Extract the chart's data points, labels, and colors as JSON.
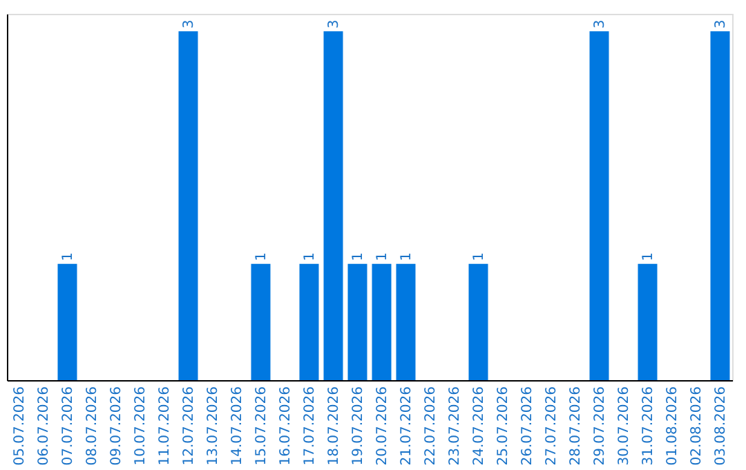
{
  "chart_data": {
    "type": "bar",
    "categories": [
      "05.07.2026",
      "06.07.2026",
      "07.07.2026",
      "08.07.2026",
      "09.07.2026",
      "10.07.2026",
      "11.07.2026",
      "12.07.2026",
      "13.07.2026",
      "14.07.2026",
      "15.07.2026",
      "16.07.2026",
      "17.07.2026",
      "18.07.2026",
      "19.07.2026",
      "20.07.2026",
      "21.07.2026",
      "22.07.2026",
      "23.07.2026",
      "24.07.2026",
      "25.07.2026",
      "26.07.2026",
      "27.07.2026",
      "28.07.2026",
      "29.07.2026",
      "30.07.2026",
      "31.07.2026",
      "01.08.2026",
      "02.08.2026",
      "03.08.2026"
    ],
    "values": [
      0,
      0,
      1,
      0,
      0,
      0,
      0,
      3,
      0,
      0,
      1,
      0,
      1,
      3,
      1,
      1,
      1,
      0,
      0,
      1,
      0,
      0,
      0,
      0,
      3,
      0,
      1,
      0,
      0,
      3
    ],
    "value_labels": [
      null,
      null,
      "1",
      null,
      null,
      null,
      null,
      "3",
      null,
      null,
      "1",
      null,
      "1",
      "3",
      "1",
      "1",
      "1",
      null,
      null,
      "1",
      null,
      null,
      null,
      null,
      "3",
      null,
      "1",
      null,
      null,
      "3"
    ],
    "color": "#0078e0",
    "ylim": [
      0,
      3.15
    ],
    "tick_labels": "x",
    "grid": false
  }
}
